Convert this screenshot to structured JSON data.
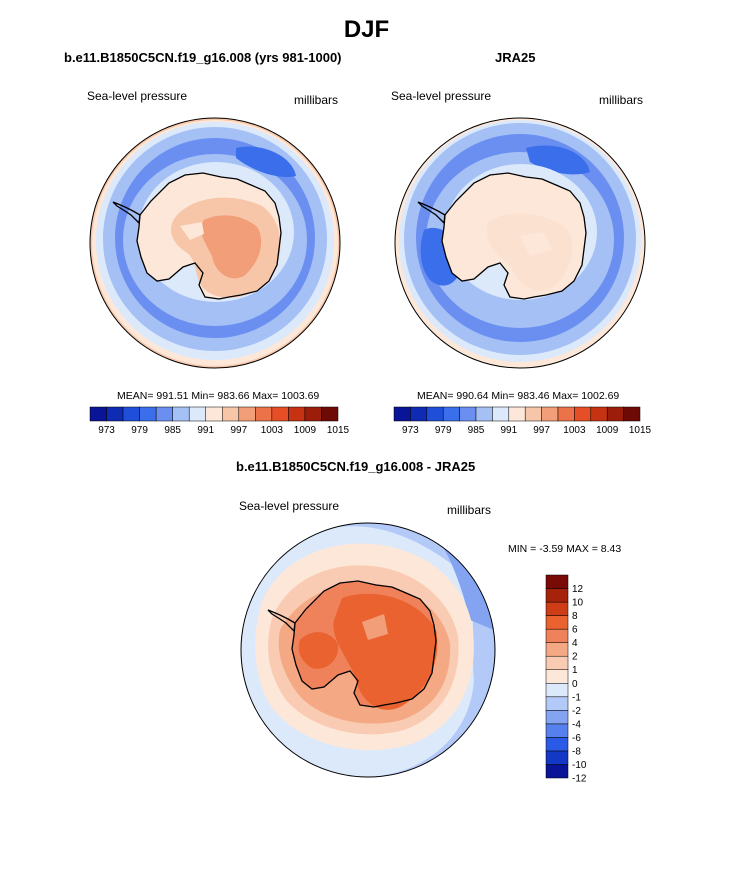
{
  "page_title": "DJF",
  "panels": [
    {
      "title": "b.e11.B1850C5CN.f19_g16.008 (yrs 981-1000)",
      "left_label": "Sea-level pressure",
      "right_label": "millibars",
      "stats": "MEAN= 991.51  Min= 983.66  Max= 1003.69"
    },
    {
      "title": "JRA25",
      "left_label": "Sea-level pressure",
      "right_label": "millibars",
      "stats": "MEAN= 990.64  Min= 983.46  Max= 1002.69"
    },
    {
      "title": "b.e11.B1850C5CN.f19_g16.008 - JRA25",
      "left_label": "Sea-level pressure",
      "right_label": "millibars",
      "stats": "MIN =  -3.59 MAX =   8.43"
    }
  ],
  "colorbar_abs": {
    "colors": [
      "#0a1496",
      "#0f2bb4",
      "#1f4fd8",
      "#3a6eeb",
      "#6b8ff0",
      "#a5c0f5",
      "#dbe9fb",
      "#fde7d9",
      "#f7c6a8",
      "#f29e78",
      "#ec7349",
      "#e64f25",
      "#c63312",
      "#9b1d0a",
      "#6e0a05"
    ],
    "labels": [
      "973",
      "979",
      "985",
      "991",
      "997",
      "1003",
      "1009",
      "1015"
    ]
  },
  "colorbar_diff": {
    "colors": [
      "#0a1496",
      "#1438c6",
      "#2a5ae6",
      "#5680ee",
      "#84a4f2",
      "#b3c9f7",
      "#dbe9fb",
      "#fde7d9",
      "#f9cbb2",
      "#f4a884",
      "#ef825a",
      "#e9622f",
      "#cf3d17",
      "#a6230b",
      "#7a0a05"
    ],
    "labels": [
      "12",
      "10",
      "8",
      "6",
      "4",
      "2",
      "1",
      "0",
      "-1",
      "-2",
      "-4",
      "-6",
      "-8",
      "-10",
      "-12"
    ]
  }
}
